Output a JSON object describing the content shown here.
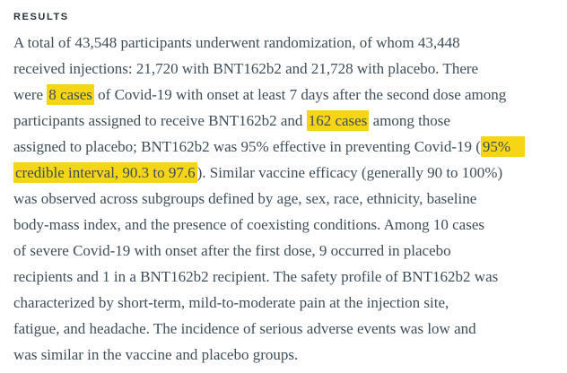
{
  "page": {
    "background": "#ffffff",
    "colors": {
      "heading": "#263238",
      "body": "#3e4e58",
      "highlight": "#f5d514"
    }
  },
  "section": {
    "heading": "RESULTS"
  },
  "paragraph": {
    "lines": [
      [
        {
          "t": "A total of 43,548 participants underwent randomization, of whom 43,448"
        }
      ],
      [
        {
          "t": "received injections: 21,720 with BNT162b2 and 21,728 with placebo. There"
        }
      ],
      [
        {
          "t": "were "
        },
        {
          "t": "8 cases",
          "h": true
        },
        {
          "t": " of Covid-19 with onset at least 7 days after the second dose among"
        }
      ],
      [
        {
          "t": "participants assigned to receive BNT162b2 and "
        },
        {
          "t": "162 cases",
          "h": true
        },
        {
          "t": " among those"
        }
      ],
      [
        {
          "t": "assigned to placebo; BNT162b2 was 95% effective in preventing Covid-19 ("
        },
        {
          "t": "95%",
          "h": true,
          "ext": true
        }
      ],
      [
        {
          "t": "credible interval, 90.3 to 97.6",
          "h": true
        },
        {
          "t": "). Similar vaccine efficacy (generally 90 to 100%)"
        }
      ],
      [
        {
          "t": "was observed across subgroups defined by age, sex, race, ethnicity, baseline"
        }
      ],
      [
        {
          "t": "body-mass index, and the presence of coexisting conditions. Among 10 cases"
        }
      ],
      [
        {
          "t": "of severe Covid-19 with onset after the first dose, 9 occurred in placebo"
        }
      ],
      [
        {
          "t": "recipients and 1 in a BNT162b2 recipient. The safety profile of BNT162b2 was"
        }
      ],
      [
        {
          "t": "characterized by short-term, mild-to-moderate pain at the injection site,"
        }
      ],
      [
        {
          "t": "fatigue, and headache. The incidence of serious adverse events was low and"
        }
      ],
      [
        {
          "t": "was similar in the vaccine and placebo groups."
        }
      ]
    ]
  }
}
